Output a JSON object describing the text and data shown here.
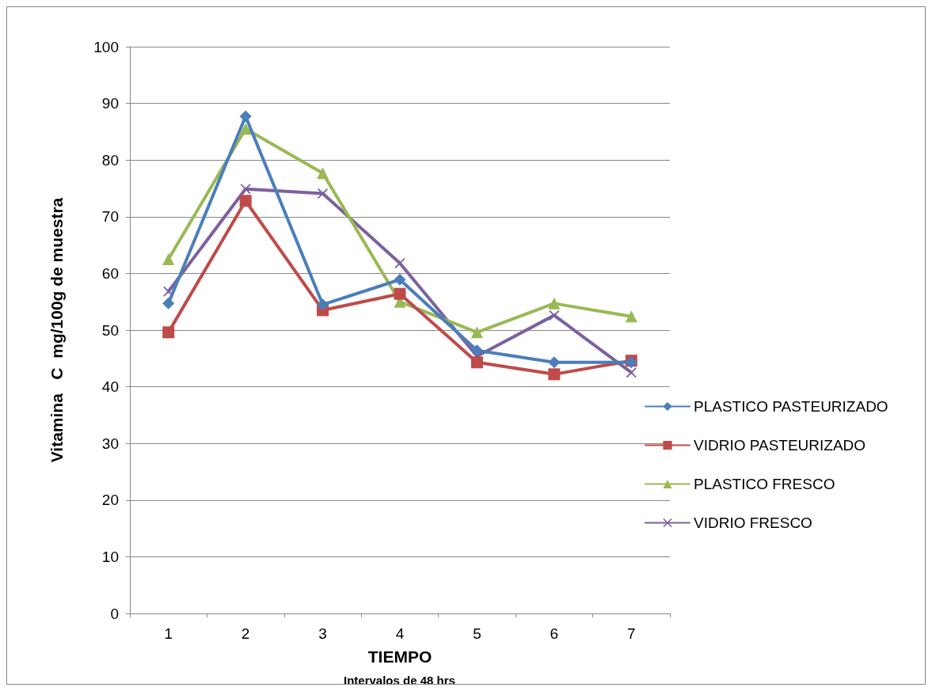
{
  "chart_data": {
    "type": "line",
    "xlabel": "TIEMPO",
    "ylabel": "Vitamina   C  mg/100g de muestra",
    "annotations": [
      "Intervalos de 48 hrs"
    ],
    "categories": [
      "1",
      "2",
      "3",
      "4",
      "5",
      "6",
      "7"
    ],
    "series": [
      {
        "name": "PLASTICO PASTEURIZADO",
        "color": "#4a7ebb",
        "marker": "diamond",
        "values": [
          54.7,
          87.7,
          54.5,
          58.9,
          46.4,
          44.3,
          44.3
        ]
      },
      {
        "name": "VIDRIO PASTEURIZADO",
        "color": "#be4b48",
        "marker": "square",
        "values": [
          49.6,
          72.8,
          53.5,
          56.4,
          44.3,
          42.2,
          44.6
        ]
      },
      {
        "name": "PLASTICO FRESCO",
        "color": "#98b954",
        "marker": "triangle",
        "values": [
          62.5,
          85.5,
          77.7,
          55.0,
          49.6,
          54.7,
          52.4
        ]
      },
      {
        "name": "VIDRIO FRESCO",
        "color": "#7d60a0",
        "marker": "cross",
        "values": [
          56.8,
          74.9,
          74.1,
          61.8,
          45.4,
          52.6,
          42.5
        ]
      }
    ],
    "ylim": [
      0,
      100
    ],
    "yticks": [
      0,
      10,
      20,
      30,
      40,
      50,
      60,
      70,
      80,
      90,
      100
    ],
    "grid": "y",
    "legend": "right",
    "line_style": "solid"
  }
}
